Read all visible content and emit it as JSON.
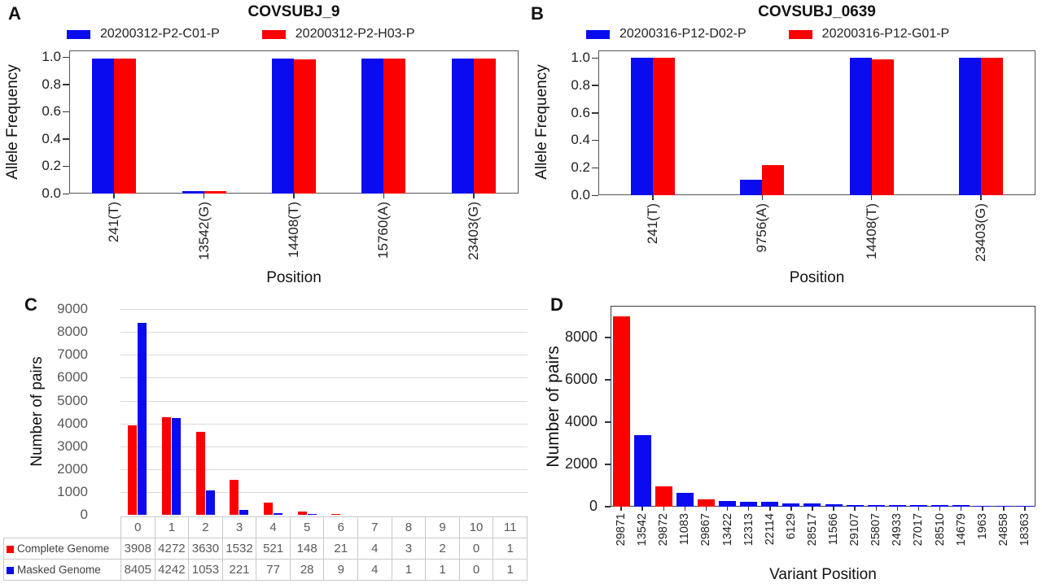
{
  "colors": {
    "blue": "#0b0bf0",
    "red": "#fa0100",
    "grid": "#d9d9d9",
    "table_border": "#c9c9c9",
    "table_text": "#595959"
  },
  "panels": {
    "a": {
      "label": "A",
      "title": "COVSUBJ_9",
      "xlabel": "Position",
      "ylabel": "Allele Frequency"
    },
    "b": {
      "label": "B",
      "title": "COVSUBJ_0639",
      "xlabel": "Position",
      "ylabel": "Allele Frequency"
    },
    "c": {
      "label": "C",
      "ylabel": "Number of pairs"
    },
    "d": {
      "label": "D",
      "xlabel": "Variant Position",
      "ylabel": "Number of pairs"
    }
  },
  "chart_data": [
    {
      "type": "bar",
      "panel": "A",
      "title": "COVSUBJ_9",
      "categories": [
        "241(T)",
        "13542(G)",
        "14408(T)",
        "15760(A)",
        "23403(G)"
      ],
      "series": [
        {
          "name": "20200312-P2-C01-P",
          "color": "blue",
          "values": [
            0.99,
            0.02,
            0.99,
            0.99,
            0.99
          ]
        },
        {
          "name": "20200312-P2-H03-P",
          "color": "red",
          "values": [
            0.99,
            0.02,
            0.98,
            0.99,
            0.99
          ]
        }
      ],
      "xlabel": "Position",
      "ylabel": "Allele Frequency",
      "ylim": [
        0,
        1.05
      ],
      "yticks": [
        "0.0",
        "0.2",
        "0.4",
        "0.6",
        "0.8",
        "1.0"
      ],
      "grid": false,
      "legend_position": "top"
    },
    {
      "type": "bar",
      "panel": "B",
      "title": "COVSUBJ_0639",
      "categories": [
        "241(T)",
        "9756(A)",
        "14408(T)",
        "23403(G)"
      ],
      "series": [
        {
          "name": "20200316-P12-D02-P",
          "color": "blue",
          "values": [
            1.0,
            0.11,
            1.0,
            1.0
          ]
        },
        {
          "name": "20200316-P12-G01-P",
          "color": "red",
          "values": [
            1.0,
            0.22,
            0.99,
            1.0
          ]
        }
      ],
      "xlabel": "Position",
      "ylabel": "Allele Frequency",
      "ylim": [
        0,
        1.05
      ],
      "yticks": [
        "0.0",
        "0.2",
        "0.4",
        "0.6",
        "0.8",
        "1.0"
      ],
      "grid": false,
      "legend_position": "top"
    },
    {
      "type": "bar",
      "panel": "C",
      "title": "",
      "categories": [
        "0",
        "1",
        "2",
        "3",
        "4",
        "5",
        "6",
        "7",
        "8",
        "9",
        "10",
        "11"
      ],
      "series": [
        {
          "name": "Complete Genome",
          "color": "red",
          "values": [
            3908,
            4272,
            3630,
            1532,
            521,
            148,
            21,
            4,
            3,
            2,
            0,
            1
          ]
        },
        {
          "name": "Masked Genome",
          "color": "blue",
          "values": [
            8405,
            4242,
            1053,
            221,
            77,
            28,
            9,
            4,
            1,
            1,
            0,
            1
          ]
        }
      ],
      "xlabel": "",
      "ylabel": "Number of pairs",
      "ylim": [
        0,
        9000
      ],
      "yticks": [
        0,
        1000,
        2000,
        3000,
        4000,
        5000,
        6000,
        7000,
        8000,
        9000
      ],
      "grid": true,
      "legend_position": "table-rows",
      "data_table": true
    },
    {
      "type": "bar",
      "panel": "D",
      "title": "",
      "categories": [
        "29871",
        "13542",
        "29872",
        "11083",
        "29867",
        "13422",
        "12313",
        "22114",
        "6129",
        "28517",
        "11566",
        "29107",
        "25807",
        "24933",
        "27017",
        "28510",
        "14679",
        "1963",
        "24858",
        "18363"
      ],
      "values": [
        9000,
        3400,
        950,
        670,
        330,
        260,
        250,
        250,
        160,
        140,
        120,
        90,
        80,
        80,
        80,
        80,
        60,
        50,
        50,
        40
      ],
      "bar_colors": [
        "red",
        "blue",
        "red",
        "blue",
        "red",
        "blue",
        "blue",
        "blue",
        "blue",
        "blue",
        "blue",
        "blue",
        "blue",
        "blue",
        "blue",
        "blue",
        "blue",
        "blue",
        "blue",
        "blue"
      ],
      "xlabel": "Variant Position",
      "ylabel": "Number of pairs",
      "ylim": [
        0,
        9500
      ],
      "yticks": [
        0,
        2000,
        4000,
        6000,
        8000
      ],
      "grid": false,
      "legend_position": "none"
    }
  ]
}
